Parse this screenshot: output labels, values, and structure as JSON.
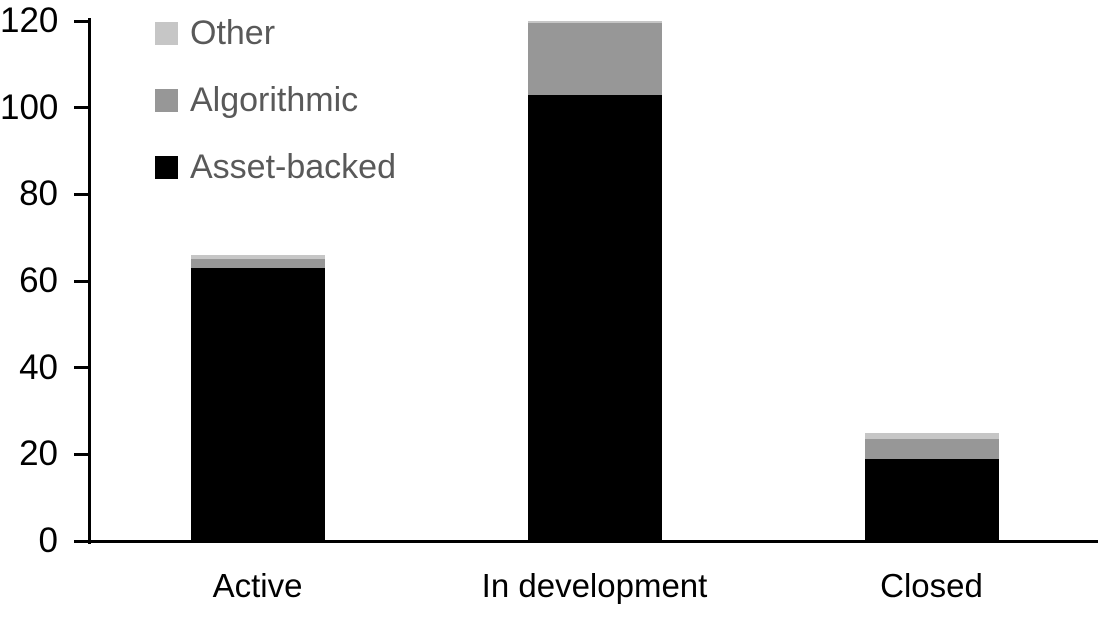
{
  "chart_data": {
    "type": "bar",
    "stacked": true,
    "title": "",
    "xlabel": "",
    "ylabel": "",
    "categories": [
      "Active",
      "In development",
      "Closed"
    ],
    "series": [
      {
        "name": "Asset-backed",
        "color": "#000000",
        "values": [
          63,
          103,
          19
        ]
      },
      {
        "name": "Algorithmic",
        "color": "#979797",
        "values": [
          2,
          16.5,
          4.5
        ]
      },
      {
        "name": "Other",
        "color": "#c6c6c6",
        "values": [
          1,
          0.5,
          1.5
        ]
      }
    ],
    "totals": [
      66,
      120,
      25
    ],
    "ylim": [
      0,
      120
    ],
    "yticks": [
      0,
      20,
      40,
      60,
      80,
      100,
      120
    ],
    "grid": false,
    "legend": {
      "position": "top-left",
      "order": [
        "Other",
        "Algorithmic",
        "Asset-backed"
      ],
      "text_color": "#595959"
    }
  },
  "colors": {
    "axis": "#000000",
    "background": "#ffffff"
  }
}
